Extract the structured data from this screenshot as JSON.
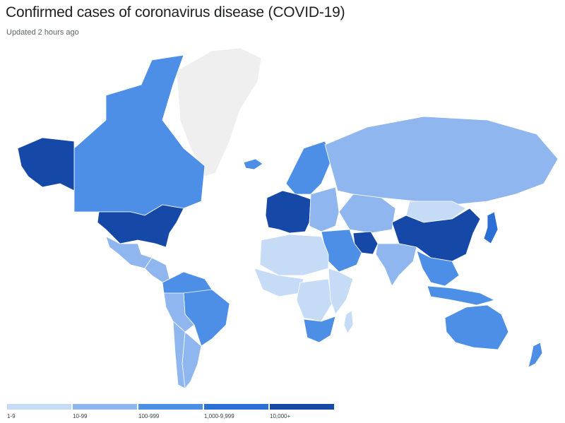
{
  "header": {
    "title": "Confirmed cases of coronavirus disease (COVID-19)",
    "subtitle": "Updated 2 hours ago"
  },
  "legend": [
    {
      "label": "1-9",
      "color": "#c6dbf6"
    },
    {
      "label": "10-99",
      "color": "#8fb6ee"
    },
    {
      "label": "100-999",
      "color": "#4d8ee6"
    },
    {
      "label": "1,000-9,999",
      "color": "#2b6fd6"
    },
    {
      "label": "10,000+",
      "color": "#1648a8"
    }
  ],
  "map": {
    "no_data_color": "#efefef",
    "regions": [
      {
        "name": "Greenland",
        "level": 0
      },
      {
        "name": "Canada",
        "level": 3
      },
      {
        "name": "Alaska",
        "level": 5
      },
      {
        "name": "United States",
        "level": 5
      },
      {
        "name": "Mexico",
        "level": 2
      },
      {
        "name": "Central America",
        "level": 2
      },
      {
        "name": "Brazil",
        "level": 3
      },
      {
        "name": "South America North",
        "level": 3
      },
      {
        "name": "South America West",
        "level": 2
      },
      {
        "name": "Argentina",
        "level": 2
      },
      {
        "name": "Chile",
        "level": 2
      },
      {
        "name": "Iceland",
        "level": 3
      },
      {
        "name": "Scandinavia",
        "level": 3
      },
      {
        "name": "Western Europe",
        "level": 5
      },
      {
        "name": "Eastern Europe",
        "level": 2
      },
      {
        "name": "Russia",
        "level": 2
      },
      {
        "name": "Central Asia",
        "level": 2
      },
      {
        "name": "Mongolia",
        "level": 1
      },
      {
        "name": "China",
        "level": 5
      },
      {
        "name": "Iran",
        "level": 5
      },
      {
        "name": "Middle East",
        "level": 3
      },
      {
        "name": "India",
        "level": 2
      },
      {
        "name": "Southeast Asia",
        "level": 3
      },
      {
        "name": "Japan",
        "level": 4
      },
      {
        "name": "North Africa",
        "level": 1
      },
      {
        "name": "West Africa",
        "level": 1
      },
      {
        "name": "Central Africa",
        "level": 1
      },
      {
        "name": "East Africa",
        "level": 1
      },
      {
        "name": "Southern Africa",
        "level": 3
      },
      {
        "name": "Madagascar",
        "level": 1
      },
      {
        "name": "Indonesia",
        "level": 3
      },
      {
        "name": "Australia",
        "level": 3
      },
      {
        "name": "New Zealand",
        "level": 3
      }
    ]
  }
}
